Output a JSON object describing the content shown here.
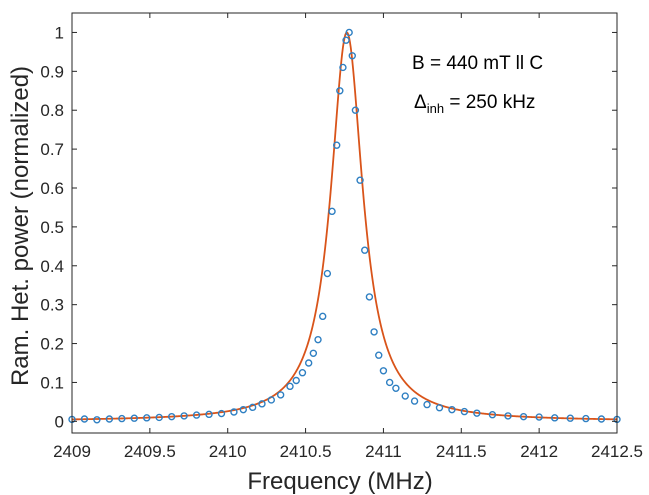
{
  "chart_data": {
    "type": "scatter",
    "xlabel": "Frequency (MHz)",
    "ylabel": "Ram. Het. power (normalized)",
    "xlim": [
      2409,
      2412.5
    ],
    "ylim": [
      -0.03,
      1.05
    ],
    "x_ticks": [
      "2409",
      "2409.5",
      "2410",
      "2410.5",
      "2411",
      "2411.5",
      "2412",
      "2412.5"
    ],
    "y_ticks": [
      "0",
      "0.1",
      "0.2",
      "0.3",
      "0.4",
      "0.5",
      "0.6",
      "0.7",
      "0.8",
      "0.9",
      "1"
    ],
    "grid": false,
    "annotations": {
      "field": "B = 440 mT ll C",
      "inh_symbol": "Δ",
      "inh_sub": "inh",
      "inh_value": " = 250 kHz"
    },
    "colors": {
      "points": "#2e7fc2",
      "fit": "#d9541a",
      "axis": "#262626"
    },
    "series": [
      {
        "kind": "points",
        "x": [
          2409.0,
          2409.08,
          2409.16,
          2409.24,
          2409.32,
          2409.4,
          2409.48,
          2409.56,
          2409.64,
          2409.72,
          2409.8,
          2409.88,
          2409.96,
          2410.04,
          2410.1,
          2410.16,
          2410.22,
          2410.28,
          2410.34,
          2410.4,
          2410.44,
          2410.48,
          2410.52,
          2410.55,
          2410.58,
          2410.61,
          2410.64,
          2410.67,
          2410.7,
          2410.72,
          2410.74,
          2410.76,
          2410.78,
          2410.8,
          2410.82,
          2410.85,
          2410.88,
          2410.91,
          2410.94,
          2410.97,
          2411.0,
          2411.04,
          2411.08,
          2411.14,
          2411.2,
          2411.28,
          2411.36,
          2411.44,
          2411.52,
          2411.6,
          2411.7,
          2411.8,
          2411.9,
          2412.0,
          2412.1,
          2412.2,
          2412.3,
          2412.4,
          2412.5
        ],
        "y": [
          0.005,
          0.006,
          0.004,
          0.006,
          0.007,
          0.008,
          0.009,
          0.01,
          0.012,
          0.014,
          0.016,
          0.018,
          0.02,
          0.024,
          0.03,
          0.036,
          0.045,
          0.055,
          0.068,
          0.09,
          0.105,
          0.125,
          0.15,
          0.175,
          0.21,
          0.27,
          0.38,
          0.54,
          0.71,
          0.85,
          0.91,
          0.98,
          1.0,
          0.94,
          0.8,
          0.62,
          0.44,
          0.32,
          0.23,
          0.17,
          0.13,
          0.1,
          0.085,
          0.065,
          0.052,
          0.043,
          0.035,
          0.03,
          0.025,
          0.021,
          0.017,
          0.014,
          0.012,
          0.011,
          0.009,
          0.008,
          0.007,
          0.006,
          0.005
        ]
      },
      {
        "kind": "fit",
        "center": 2410.765,
        "hwhm": 0.125,
        "amplitude": 1.0
      }
    ]
  }
}
